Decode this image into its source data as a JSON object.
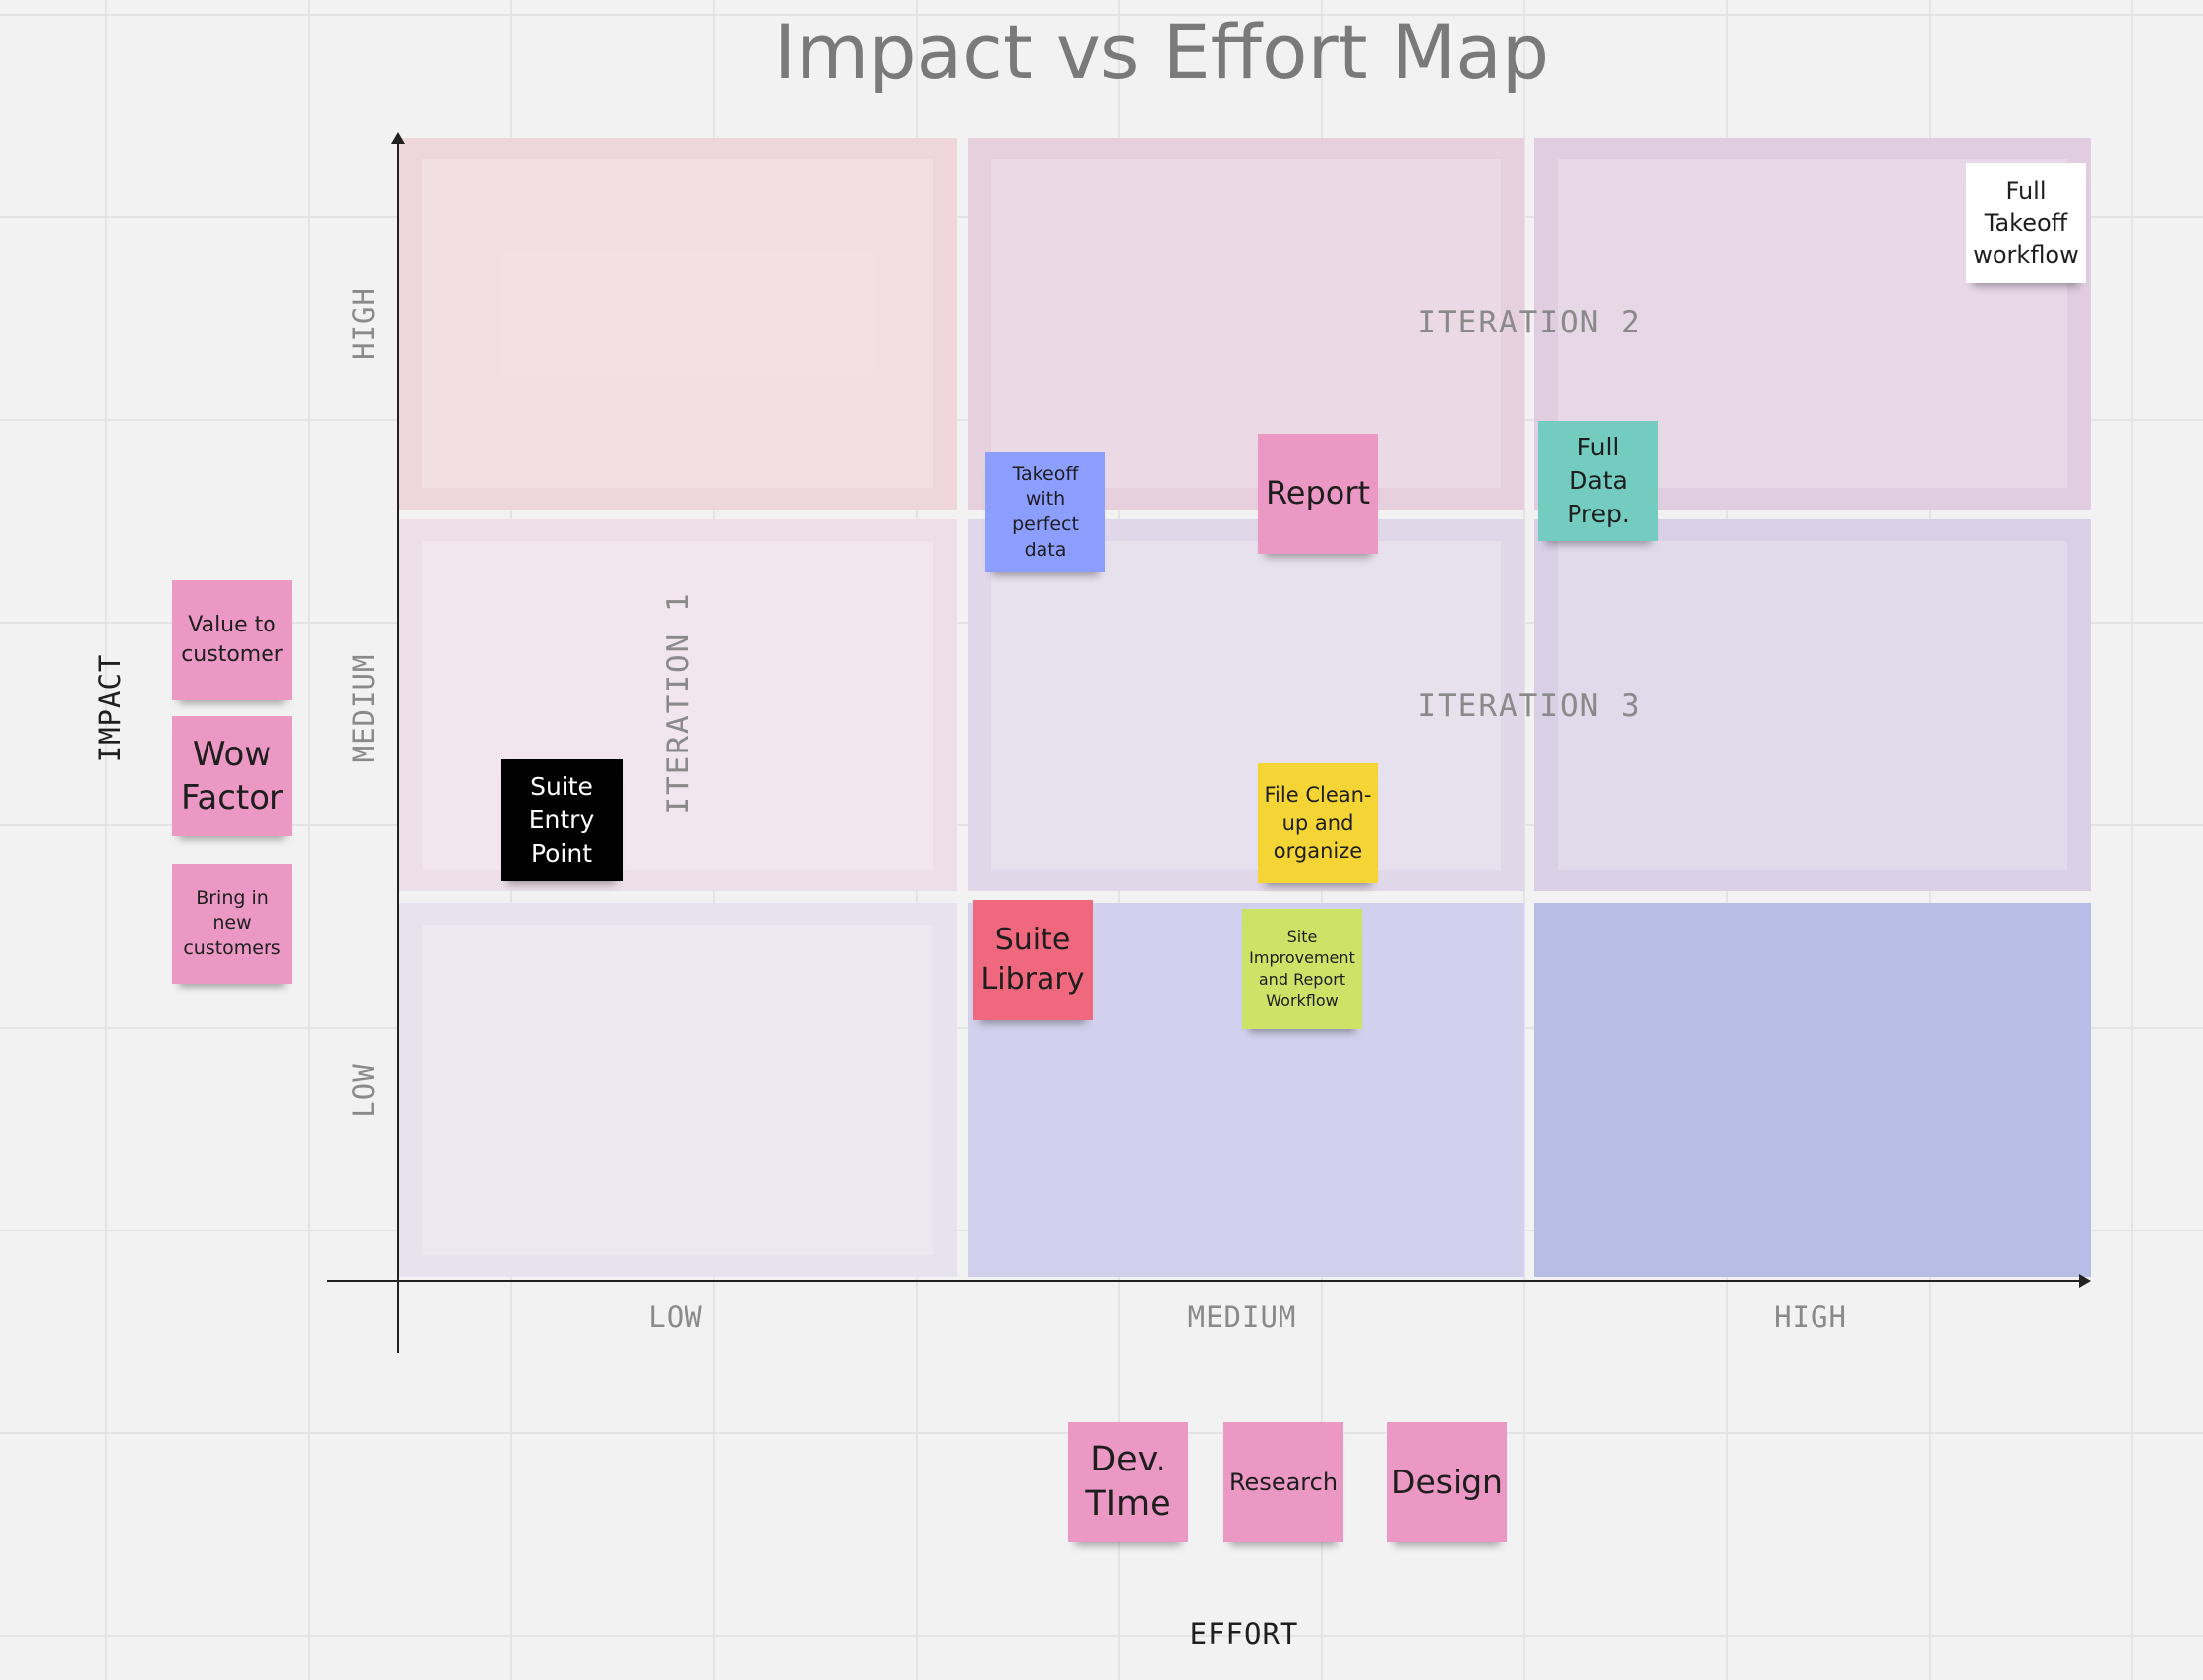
{
  "title": "Impact vs Effort Map",
  "axes": {
    "y_title": "IMPACT",
    "x_title": "EFFORT",
    "y_levels": [
      "HIGH",
      "MEDIUM",
      "LOW"
    ],
    "x_levels": [
      "LOW",
      "MEDIUM",
      "HIGH"
    ]
  },
  "iterations": {
    "iteration_1": "ITERATION 1",
    "iteration_2": "ITERATION 2",
    "iteration_3": "ITERATION 3"
  },
  "grid_colors": {
    "high_impact": [
      "#efd6dd",
      "#e6d0de",
      "#e0cde0"
    ],
    "medium_impact": [
      "#eddfe8",
      "#e0d8e8",
      "#d9d0e6"
    ],
    "low_impact": [
      "#e6e2ee",
      "#d2d0ec",
      "#b7bee6"
    ]
  },
  "legend_impact": [
    {
      "text": "Value to customer",
      "color": "#eb98c4"
    },
    {
      "text": "Wow Factor",
      "color": "#eb98c4"
    },
    {
      "text": "Bring in new customers",
      "color": "#eb98c4"
    }
  ],
  "legend_effort": [
    {
      "text": "Dev. TIme",
      "color": "#eb98c4"
    },
    {
      "text": "Research",
      "color": "#eb98c4"
    },
    {
      "text": "Design",
      "color": "#eb98c4"
    }
  ],
  "notes": [
    {
      "text": "Full Takeoff workflow",
      "color": "#ffffff"
    },
    {
      "text": "Takeoff with perfect data",
      "color": "#8c9eff"
    },
    {
      "text": "Report",
      "color": "#eb98c4"
    },
    {
      "text": "Full Data Prep.",
      "color": "#74ccc0"
    },
    {
      "text": "Suite Entry Point",
      "color": "#000000"
    },
    {
      "text": "File Clean-up and organize",
      "color": "#f5d535"
    },
    {
      "text": "Suite Library",
      "color": "#f0687e"
    },
    {
      "text": "Site Improvement and Report Workflow",
      "color": "#cde266"
    }
  ]
}
